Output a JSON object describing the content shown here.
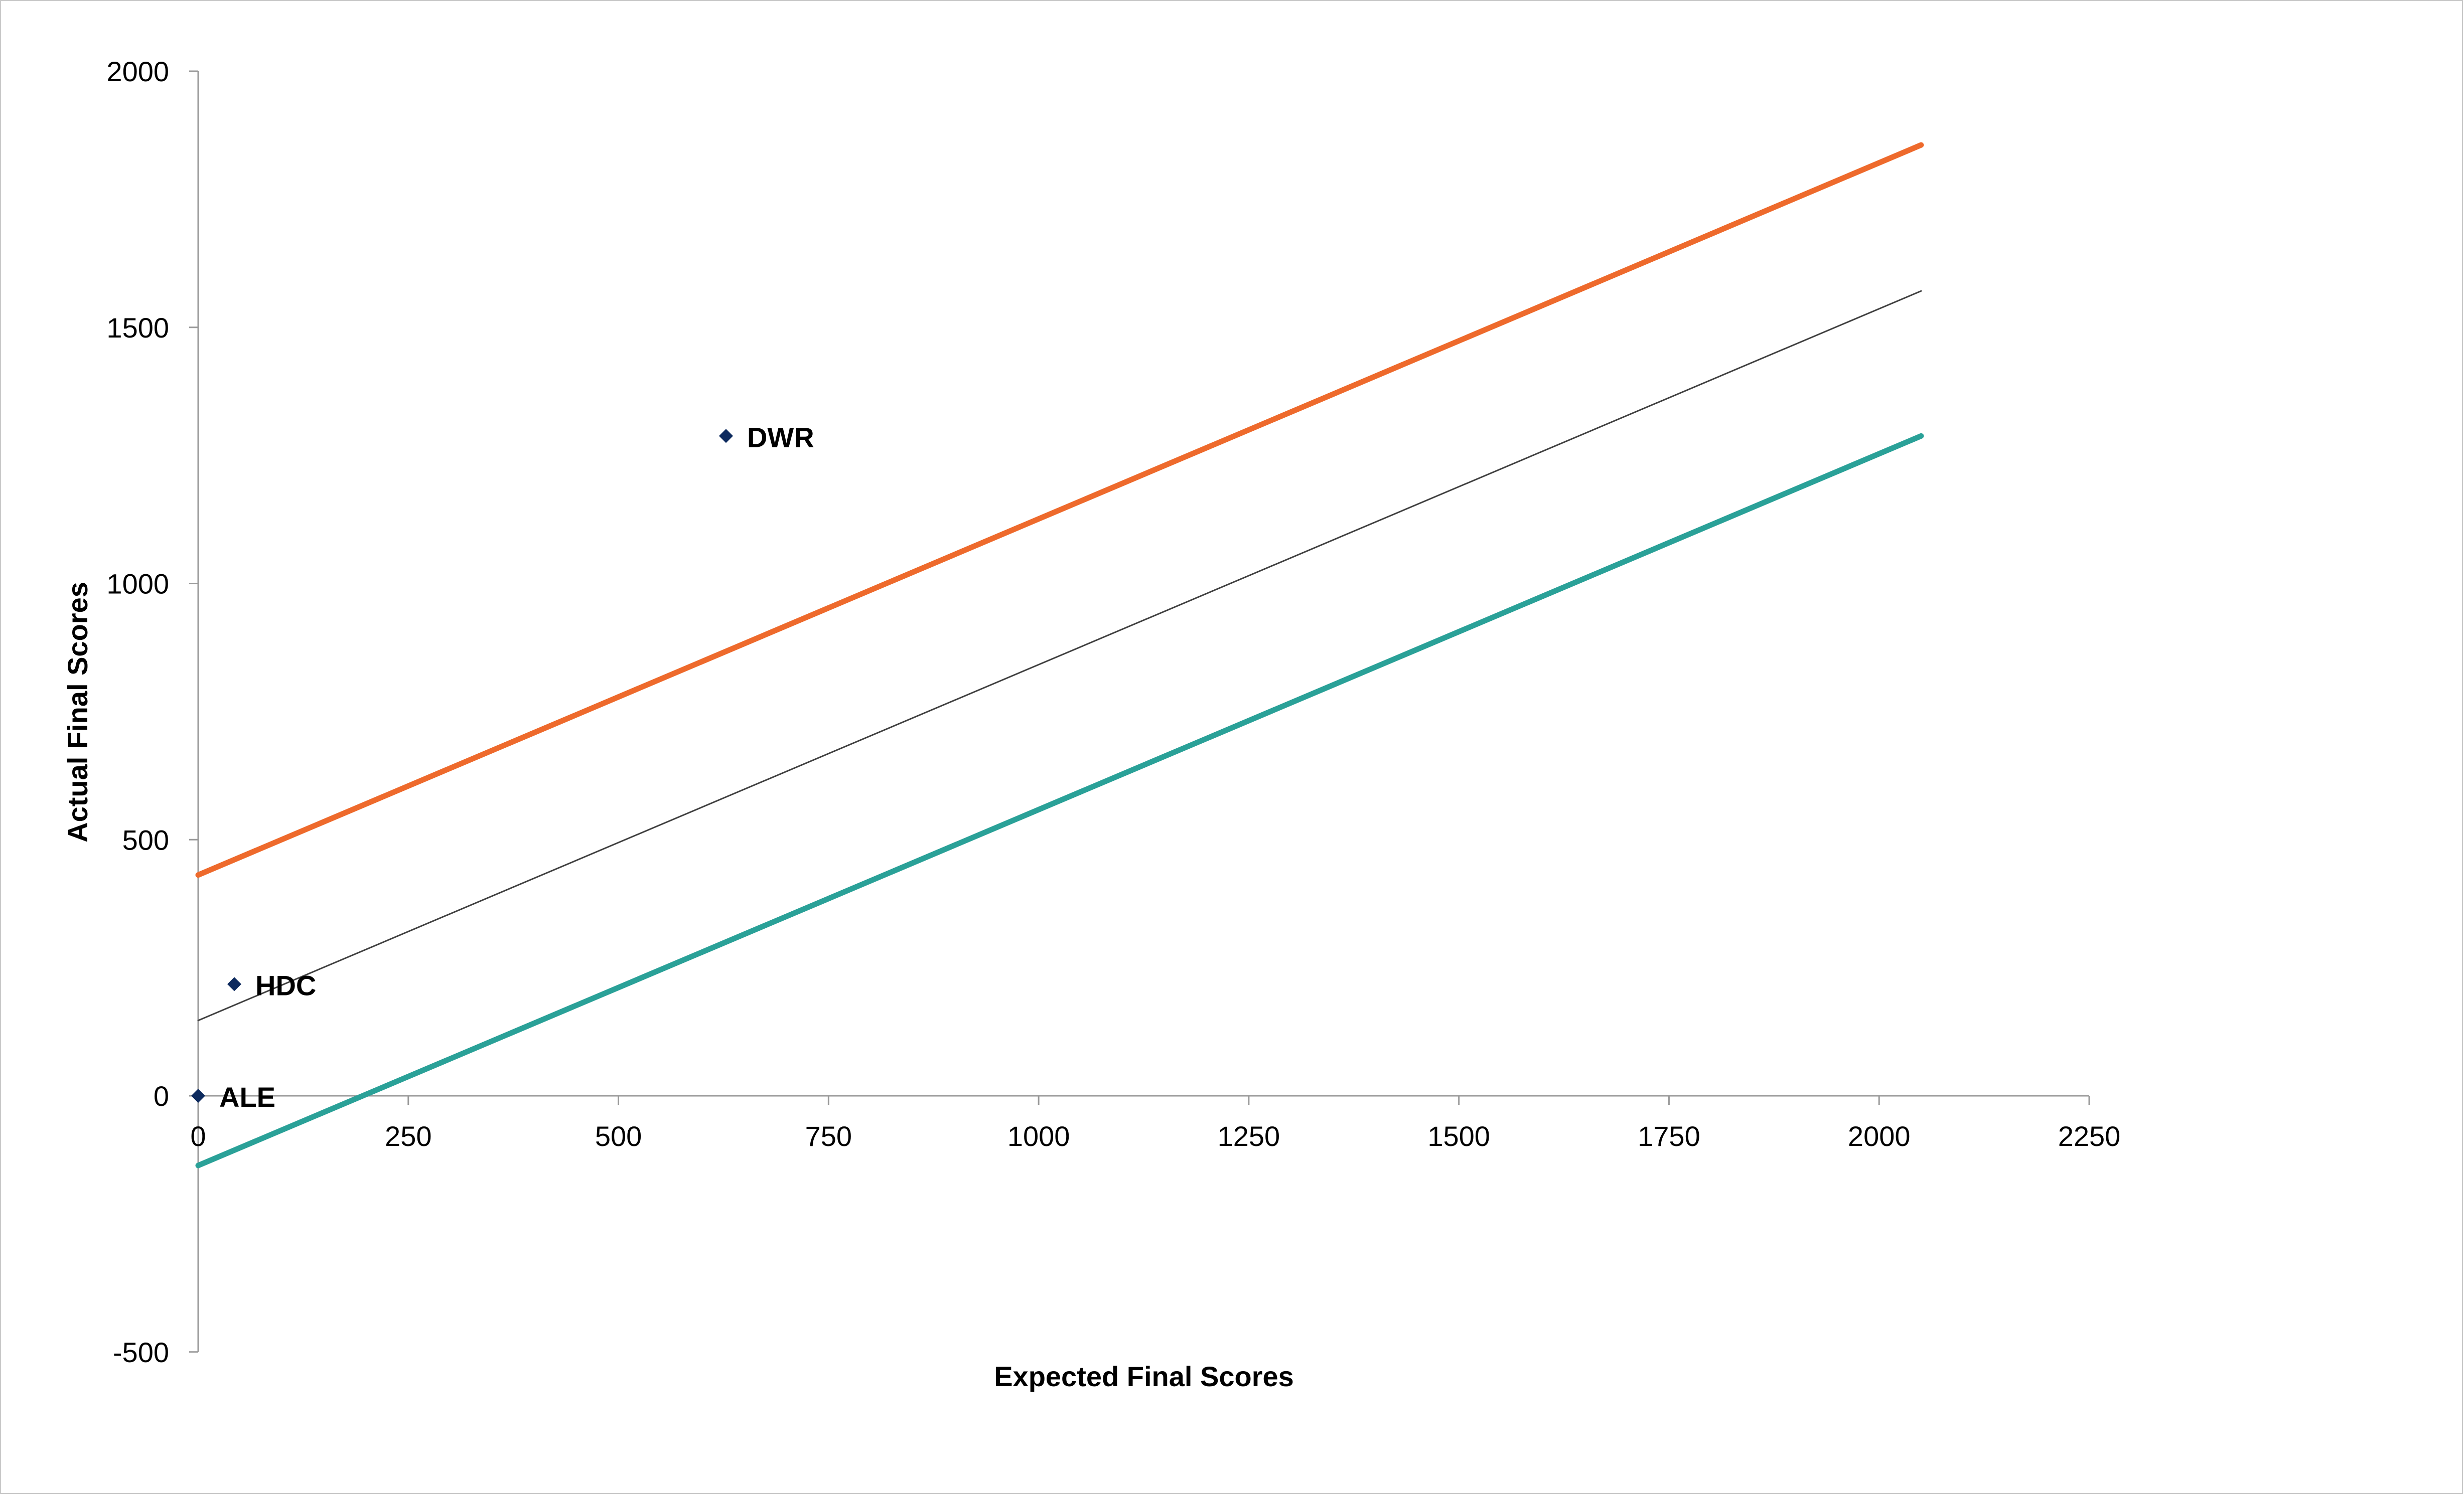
{
  "chart_data": {
    "type": "scatter",
    "title": "",
    "xlabel": "Expected Final Scores",
    "ylabel": "Actual Final Scores",
    "xlim": [
      0,
      2250
    ],
    "ylim": [
      -500,
      2000
    ],
    "x_ticks": [
      "0",
      "250",
      "500",
      "750",
      "1000",
      "1250",
      "1500",
      "1750",
      "2000",
      "2250"
    ],
    "y_ticks": [
      "2000",
      "1500",
      "1000",
      "500",
      "0",
      "-500"
    ],
    "grid": false,
    "legend": "none",
    "points": [
      {
        "label": "ALE",
        "x": 0,
        "y": 0
      },
      {
        "label": "HDC",
        "x": 43,
        "y": 218
      },
      {
        "label": "DWR",
        "x": 628,
        "y": 1288
      }
    ],
    "lines": [
      {
        "color": "#ee6a2c",
        "x": [
          0,
          2050
        ],
        "y": [
          431,
          1856
        ]
      },
      {
        "color": "#404040",
        "x": [
          0,
          2050
        ],
        "y": [
          147,
          1571
        ]
      },
      {
        "color": "#2aa198",
        "x": [
          0,
          2050
        ],
        "y": [
          -136,
          1288
        ]
      }
    ],
    "point_color": "#0d2a5e"
  }
}
